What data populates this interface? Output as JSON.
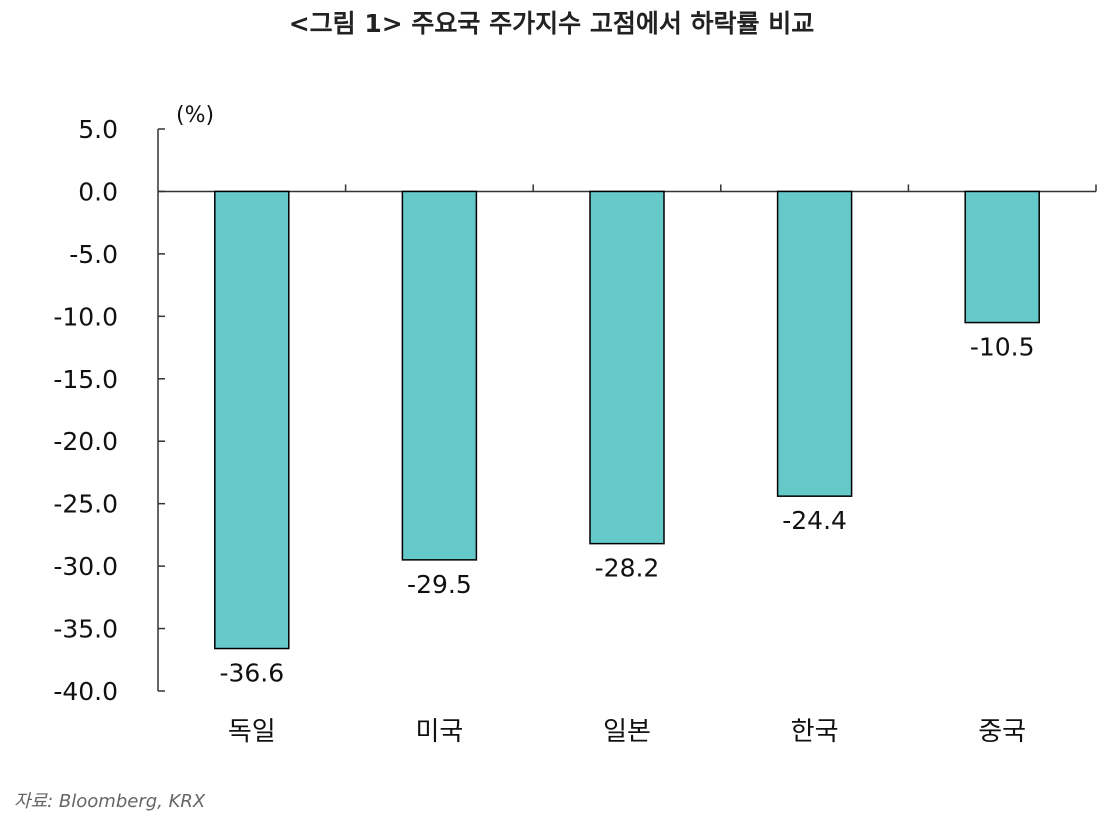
{
  "chart_data": {
    "type": "bar",
    "title": "<그림 1> 주요국 주가지수 고점에서 하락률 비교",
    "unit_label": "(%)",
    "categories": [
      "독일",
      "미국",
      "일본",
      "한국",
      "중국"
    ],
    "values": [
      -36.6,
      -29.5,
      -28.2,
      -24.4,
      -10.5
    ],
    "value_labels": [
      "-36.6",
      "-29.5",
      "-28.2",
      "-24.4",
      "-10.5"
    ],
    "ylim": [
      -40,
      5
    ],
    "yticks": [
      5,
      0,
      -5,
      -10,
      -15,
      -20,
      -25,
      -30,
      -35,
      -40
    ],
    "ytick_labels": [
      "5.0",
      "0.0",
      "-5.0",
      "-10.0",
      "-15.0",
      "-20.0",
      "-25.0",
      "-30.0",
      "-35.0",
      "-40.0"
    ],
    "bar_color": "#66c9c9",
    "bar_edge_color": "#000000",
    "grid": false,
    "legend": "none"
  },
  "source": "자료: Bloomberg, KRX"
}
